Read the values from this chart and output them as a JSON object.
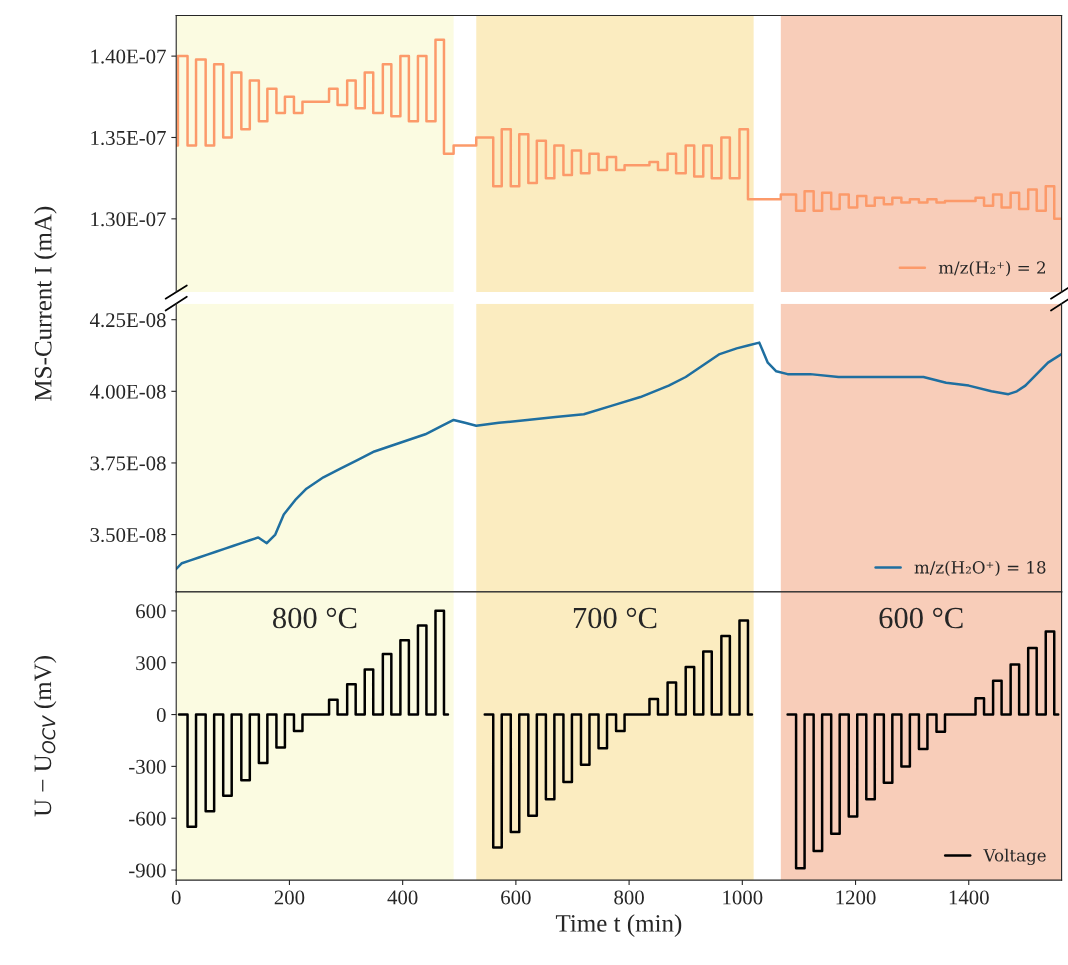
{
  "chart_data": [
    {
      "type": "step",
      "ylabel": "MS-Current I (mA)",
      "xlim": [
        0,
        1564
      ],
      "ylim": [
        1.255e-07,
        1.425e-07
      ],
      "yticks": [
        {
          "value": 1.3e-07,
          "label": "1.30E-07"
        },
        {
          "value": 1.35e-07,
          "label": "1.35E-07"
        },
        {
          "value": 1.4e-07,
          "label": "1.40E-07"
        }
      ],
      "tick_labels": "y",
      "grid": false,
      "legend": "bottom right",
      "bands": [
        {
          "axis": "x",
          "from": 0,
          "to": 490,
          "color": "#fbfbe1"
        },
        {
          "axis": "x",
          "from": 530,
          "to": 1020,
          "color": "#fbecc0"
        },
        {
          "axis": "x",
          "from": 1068,
          "to": 1564,
          "color": "#f8cdb9"
        }
      ],
      "series": [
        {
          "name": "m/z(H₂⁺) = 2",
          "color": "#fc9a6a",
          "x": [
            0,
            3,
            20,
            35,
            52,
            67,
            83,
            98,
            115,
            130,
            146,
            161,
            177,
            192,
            208,
            223,
            270,
            285,
            302,
            317,
            333,
            348,
            365,
            380,
            396,
            411,
            427,
            442,
            458,
            473,
            490,
            530,
            560,
            575,
            591,
            606,
            622,
            637,
            653,
            668,
            684,
            699,
            715,
            730,
            746,
            761,
            777,
            792,
            836,
            851,
            868,
            883,
            900,
            915,
            931,
            946,
            963,
            978,
            995,
            1010,
            1068,
            1095,
            1110,
            1126,
            1141,
            1157,
            1172,
            1188,
            1203,
            1219,
            1234,
            1250,
            1265,
            1281,
            1296,
            1312,
            1327,
            1343,
            1358,
            1412,
            1427,
            1443,
            1458,
            1474,
            1489,
            1505,
            1520,
            1536,
            1551,
            1564
          ],
          "values": [
            1.345e-07,
            1.4e-07,
            1.345e-07,
            1.398e-07,
            1.345e-07,
            1.395e-07,
            1.35e-07,
            1.39e-07,
            1.355e-07,
            1.385e-07,
            1.36e-07,
            1.38e-07,
            1.365e-07,
            1.375e-07,
            1.365e-07,
            1.372e-07,
            1.38e-07,
            1.37e-07,
            1.385e-07,
            1.368e-07,
            1.39e-07,
            1.365e-07,
            1.395e-07,
            1.363e-07,
            1.4e-07,
            1.36e-07,
            1.4e-07,
            1.36e-07,
            1.41e-07,
            1.34e-07,
            1.345e-07,
            1.35e-07,
            1.32e-07,
            1.355e-07,
            1.32e-07,
            1.352e-07,
            1.322e-07,
            1.348e-07,
            1.325e-07,
            1.345e-07,
            1.327e-07,
            1.342e-07,
            1.328e-07,
            1.34e-07,
            1.33e-07,
            1.338e-07,
            1.33e-07,
            1.333e-07,
            1.335e-07,
            1.33e-07,
            1.34e-07,
            1.328e-07,
            1.345e-07,
            1.326e-07,
            1.345e-07,
            1.325e-07,
            1.35e-07,
            1.325e-07,
            1.355e-07,
            1.312e-07,
            1.315e-07,
            1.305e-07,
            1.317e-07,
            1.305e-07,
            1.316e-07,
            1.306e-07,
            1.315e-07,
            1.307e-07,
            1.314e-07,
            1.308e-07,
            1.313e-07,
            1.309e-07,
            1.313e-07,
            1.31e-07,
            1.312e-07,
            1.31e-07,
            1.312e-07,
            1.31e-07,
            1.311e-07,
            1.313e-07,
            1.308e-07,
            1.315e-07,
            1.307e-07,
            1.316e-07,
            1.306e-07,
            1.318e-07,
            1.305e-07,
            1.32e-07,
            1.3e-07,
            1.3e-07
          ]
        }
      ]
    },
    {
      "type": "line",
      "xlim": [
        0,
        1564
      ],
      "ylim": [
        3.3e-08,
        4.306e-08
      ],
      "yticks": [
        {
          "value": 3.5e-08,
          "label": "3.50E-08"
        },
        {
          "value": 3.75e-08,
          "label": "3.75E-08"
        },
        {
          "value": 4e-08,
          "label": "4.00E-08"
        },
        {
          "value": 4.25e-08,
          "label": "4.25E-08"
        }
      ],
      "tick_labels": "y",
      "grid": false,
      "legend": "bottom right",
      "bands": [
        {
          "axis": "x",
          "from": 0,
          "to": 490,
          "color": "#fbfbe1"
        },
        {
          "axis": "x",
          "from": 530,
          "to": 1020,
          "color": "#fbecc0"
        },
        {
          "axis": "x",
          "from": 1068,
          "to": 1564,
          "color": "#f8cdb9"
        }
      ],
      "series": [
        {
          "name": "m/z(H₂O⁺) = 18",
          "color": "#1f6fa0",
          "x": [
            0,
            10,
            25,
            40,
            55,
            70,
            85,
            100,
            115,
            130,
            145,
            160,
            175,
            190,
            210,
            230,
            260,
            290,
            320,
            350,
            380,
            410,
            440,
            470,
            490,
            510,
            530,
            570,
            620,
            670,
            720,
            770,
            820,
            870,
            900,
            930,
            960,
            990,
            1010,
            1030,
            1045,
            1060,
            1080,
            1120,
            1170,
            1220,
            1270,
            1320,
            1360,
            1400,
            1440,
            1470,
            1485,
            1500,
            1520,
            1540,
            1564
          ],
          "values": [
            3.38e-08,
            3.4e-08,
            3.41e-08,
            3.42e-08,
            3.43e-08,
            3.44e-08,
            3.45e-08,
            3.46e-08,
            3.47e-08,
            3.48e-08,
            3.49e-08,
            3.47e-08,
            3.5e-08,
            3.57e-08,
            3.62e-08,
            3.66e-08,
            3.7e-08,
            3.73e-08,
            3.76e-08,
            3.79e-08,
            3.81e-08,
            3.83e-08,
            3.85e-08,
            3.88e-08,
            3.9e-08,
            3.89e-08,
            3.88e-08,
            3.89e-08,
            3.9e-08,
            3.91e-08,
            3.92e-08,
            3.95e-08,
            3.98e-08,
            4.02e-08,
            4.05e-08,
            4.09e-08,
            4.13e-08,
            4.15e-08,
            4.16e-08,
            4.17e-08,
            4.1e-08,
            4.07e-08,
            4.06e-08,
            4.06e-08,
            4.05e-08,
            4.05e-08,
            4.05e-08,
            4.05e-08,
            4.03e-08,
            4.02e-08,
            4e-08,
            3.99e-08,
            4e-08,
            4.02e-08,
            4.06e-08,
            4.1e-08,
            4.13e-08
          ]
        }
      ]
    },
    {
      "type": "step",
      "ylabel": "U − U$_{OCV}$ (mV)",
      "xlabel": "Time t (min)",
      "xlim": [
        0,
        1564
      ],
      "ylim": [
        -958,
        710
      ],
      "xticks": [
        0,
        200,
        400,
        600,
        800,
        1000,
        1200,
        1400
      ],
      "yticks": [
        -900,
        -600,
        -300,
        0,
        300,
        600
      ],
      "grid": false,
      "legend": "bottom right",
      "bands": [
        {
          "axis": "x",
          "from": 0,
          "to": 490,
          "color": "#fbfbe1",
          "label": "800 °C"
        },
        {
          "axis": "x",
          "from": 530,
          "to": 1020,
          "color": "#fbecc0",
          "label": "700 °C"
        },
        {
          "axis": "x",
          "from": 1068,
          "to": 1564,
          "color": "#f8cdb9",
          "label": "600 °C"
        }
      ],
      "series": [
        {
          "name": "Voltage",
          "color": "#000000",
          "x": [
            5,
            20,
            35,
            52,
            67,
            83,
            98,
            115,
            130,
            146,
            161,
            177,
            192,
            208,
            223,
            270,
            285,
            302,
            317,
            333,
            348,
            365,
            380,
            396,
            411,
            427,
            442,
            458,
            473,
            480,
            545,
            560,
            575,
            591,
            606,
            622,
            637,
            653,
            668,
            684,
            699,
            715,
            730,
            746,
            761,
            777,
            792,
            836,
            851,
            868,
            883,
            900,
            915,
            931,
            946,
            963,
            978,
            995,
            1010,
            1017,
            1080,
            1095,
            1110,
            1126,
            1141,
            1157,
            1172,
            1188,
            1203,
            1219,
            1234,
            1250,
            1265,
            1281,
            1296,
            1312,
            1327,
            1343,
            1358,
            1412,
            1427,
            1443,
            1458,
            1474,
            1489,
            1505,
            1520,
            1536,
            1551,
            1558
          ],
          "values": [
            0,
            -650,
            0,
            -560,
            0,
            -470,
            0,
            -380,
            0,
            -280,
            0,
            -190,
            0,
            -95,
            0,
            85,
            0,
            175,
            0,
            260,
            0,
            350,
            0,
            430,
            0,
            515,
            0,
            600,
            0,
            null,
            0,
            -770,
            0,
            -680,
            0,
            -585,
            0,
            -490,
            0,
            -390,
            0,
            -290,
            0,
            -195,
            0,
            -95,
            0,
            90,
            0,
            185,
            0,
            275,
            0,
            365,
            0,
            455,
            0,
            545,
            0,
            null,
            0,
            -890,
            0,
            -790,
            0,
            -690,
            0,
            -590,
            0,
            -490,
            0,
            -395,
            0,
            -300,
            0,
            -200,
            0,
            -100,
            0,
            95,
            0,
            195,
            0,
            290,
            0,
            385,
            0,
            480,
            0,
            0
          ]
        }
      ]
    }
  ]
}
